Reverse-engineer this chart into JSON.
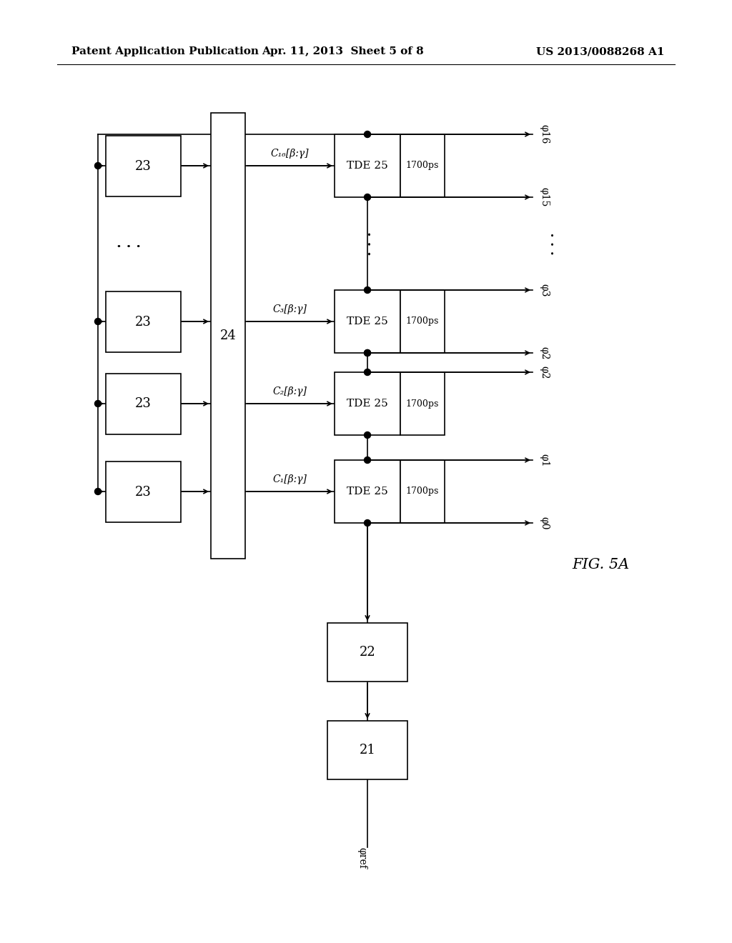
{
  "bg_color": "#ffffff",
  "line_color": "#000000",
  "header_left": "Patent Application Publication",
  "header_mid": "Apr. 11, 2013  Sheet 5 of 8",
  "header_right": "US 2013/0088268 A1",
  "fig_label": "FIG. 5A",
  "block23_label": "23",
  "block24_label": "24",
  "block25_label": "TDE 25",
  "block22_label": "22",
  "block21_label": "21",
  "delay_label": "1700ps",
  "phi_ref": "φref",
  "phi0": "φ0",
  "phi1": "φ1",
  "phi2": "φ2",
  "phi3": "φ3",
  "phi15": "φ15",
  "phi16": "φ16",
  "C1": "C₁[β:γ]",
  "C2": "C₂[β:γ]",
  "C3": "C₃[β:γ]",
  "C16": "C₁₆[β:γ]"
}
